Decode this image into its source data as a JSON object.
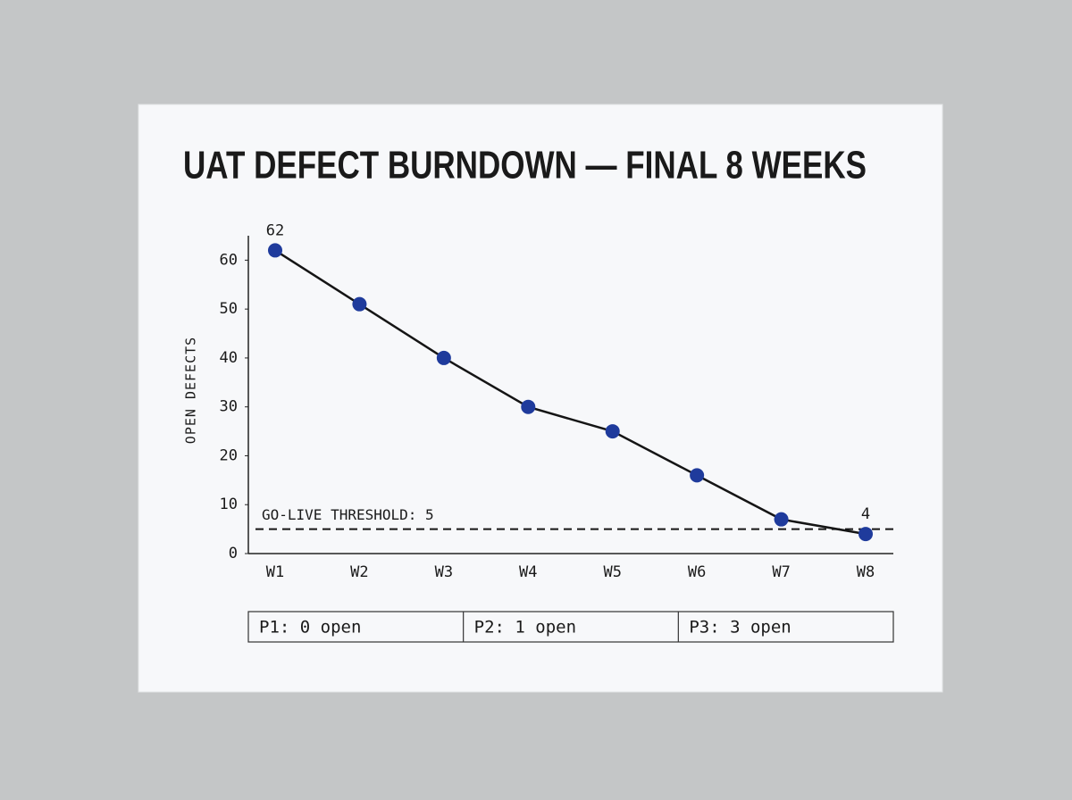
{
  "chart_data": {
    "type": "line",
    "title": "UAT DEFECT BURNDOWN — FINAL 8 WEEKS",
    "y_label": "OPEN DEFECTS",
    "categories": [
      "W1",
      "W2",
      "W3",
      "W4",
      "W5",
      "W6",
      "W7",
      "W8"
    ],
    "series": [
      {
        "name": "Open defects",
        "color": "#1f3b9c",
        "line_color": "#151515",
        "values": [
          62,
          51,
          40,
          30,
          25,
          16,
          7,
          4
        ],
        "value_labels": [
          "62",
          null,
          null,
          null,
          null,
          null,
          null,
          "4"
        ]
      }
    ],
    "threshold": {
      "value": 5,
      "label": "GO-LIVE THRESHOLD: 5"
    },
    "ylim": [
      0,
      65
    ],
    "yticks": [
      0,
      10,
      20,
      30,
      40,
      50,
      60
    ],
    "grid": false,
    "summary": [
      "P1: 0 open",
      "P2: 1 open",
      "P3: 3 open"
    ]
  }
}
